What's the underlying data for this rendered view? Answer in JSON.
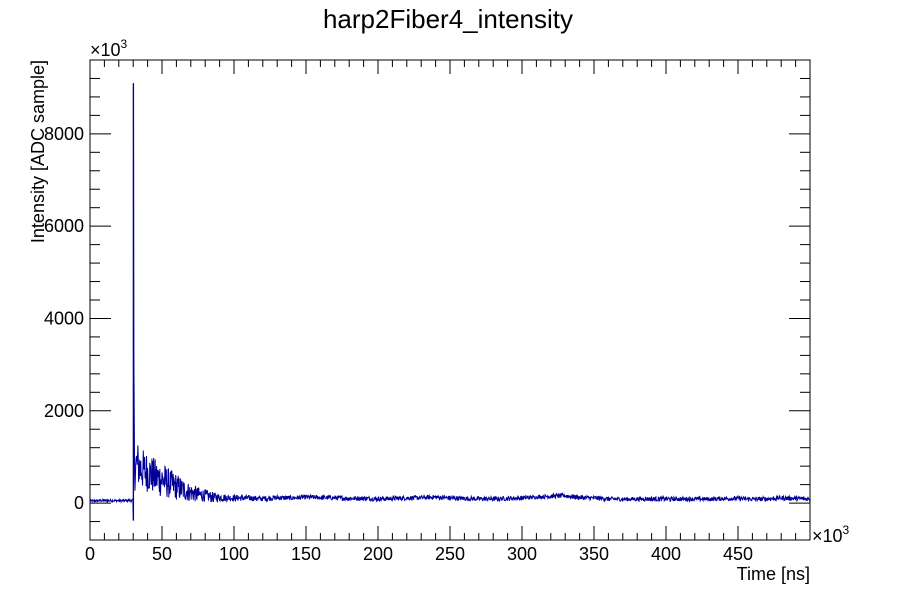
{
  "chart_data": {
    "type": "line",
    "title": "harp2Fiber4_intensity",
    "xlabel": "Time [ns]",
    "ylabel": "Intensity [ADC sample]",
    "x_multiplier": "×10",
    "x_multiplier_exp": "3",
    "y_multiplier": "×10",
    "y_multiplier_exp": "3",
    "xlim": [
      0,
      500
    ],
    "ylim": [
      -800,
      9600
    ],
    "x_ticks": [
      0,
      50,
      100,
      150,
      200,
      250,
      300,
      350,
      400,
      450
    ],
    "x_tick_labels": [
      "0",
      "50",
      "100",
      "150",
      "200",
      "250",
      "300",
      "350",
      "400",
      "450"
    ],
    "y_ticks": [
      0,
      2000,
      4000,
      6000,
      8000
    ],
    "y_tick_labels": [
      "0",
      "2000",
      "4000",
      "6000",
      "8000"
    ],
    "grid": false,
    "legend": "none",
    "series": [
      {
        "color": "#000099",
        "envelope": {
          "x": [
            0,
            10,
            20,
            29.9,
            30.2,
            30.8,
            31.5,
            33,
            35,
            38,
            42,
            46,
            50,
            55,
            60,
            65,
            70,
            75,
            80,
            85,
            90,
            95,
            100,
            110,
            120,
            130,
            140,
            150,
            160,
            170,
            180,
            190,
            200,
            210,
            220,
            230,
            240,
            250,
            260,
            270,
            280,
            290,
            300,
            310,
            320,
            330,
            340,
            350,
            360,
            370,
            380,
            390,
            400,
            410,
            420,
            430,
            440,
            450,
            460,
            470,
            480,
            490,
            500
          ],
          "hi": [
            70,
            80,
            75,
            90,
            9100,
            1400,
            1300,
            1350,
            1200,
            1150,
            1050,
            950,
            900,
            750,
            650,
            520,
            420,
            350,
            300,
            240,
            210,
            190,
            180,
            170,
            150,
            175,
            160,
            180,
            170,
            165,
            150,
            155,
            140,
            150,
            155,
            165,
            180,
            160,
            150,
            145,
            140,
            150,
            160,
            170,
            200,
            210,
            170,
            160,
            140,
            130,
            135,
            140,
            140,
            135,
            140,
            130,
            145,
            150,
            130,
            140,
            160,
            150,
            140
          ],
          "lo": [
            20,
            30,
            30,
            20,
            -380,
            200,
            300,
            350,
            300,
            250,
            220,
            150,
            120,
            100,
            60,
            40,
            30,
            20,
            30,
            10,
            30,
            40,
            40,
            50,
            40,
            60,
            60,
            80,
            70,
            60,
            50,
            50,
            40,
            50,
            60,
            70,
            80,
            60,
            50,
            40,
            40,
            50,
            60,
            90,
            100,
            110,
            70,
            60,
            40,
            40,
            40,
            40,
            40,
            40,
            40,
            40,
            50,
            50,
            40,
            40,
            60,
            50,
            40
          ]
        }
      }
    ]
  }
}
